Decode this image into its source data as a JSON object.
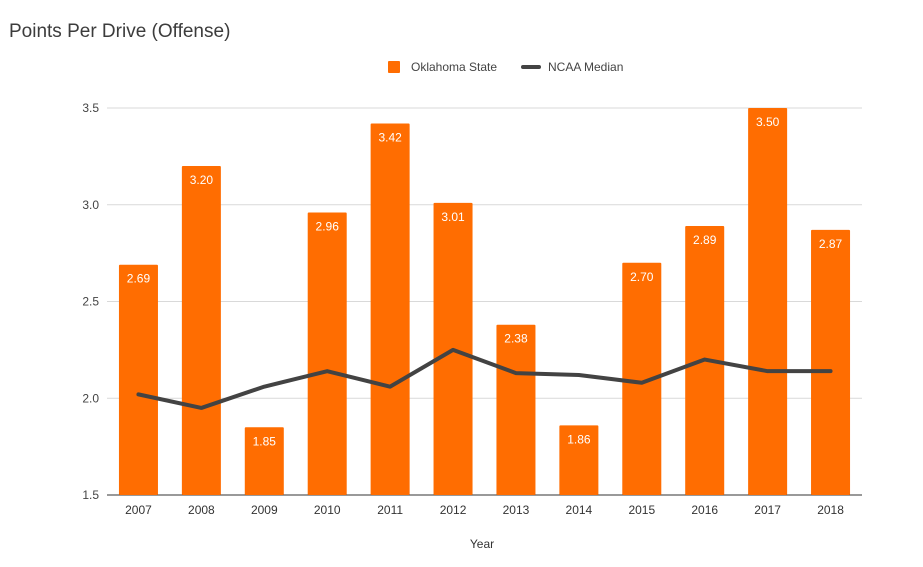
{
  "chart_data": {
    "type": "bar",
    "title": "Points Per Drive (Offense)",
    "xlabel": "Year",
    "ylabel": "",
    "ylim": [
      1.5,
      3.5
    ],
    "yticks": [
      "1.5",
      "2.0",
      "2.5",
      "3.0",
      "3.5"
    ],
    "grid": true,
    "legend_position": "top",
    "categories": [
      "2007",
      "2008",
      "2009",
      "2010",
      "2011",
      "2012",
      "2013",
      "2014",
      "2015",
      "2016",
      "2017",
      "2018"
    ],
    "series": [
      {
        "name": "Oklahoma State",
        "type": "bar",
        "color": "#ff6d01",
        "values": [
          2.69,
          3.2,
          1.85,
          2.96,
          3.42,
          3.01,
          2.38,
          1.86,
          2.7,
          2.89,
          3.5,
          2.87
        ],
        "labels": [
          "2.69",
          "3.20",
          "1.85",
          "2.96",
          "3.42",
          "3.01",
          "2.38",
          "1.86",
          "2.70",
          "2.89",
          "3.50",
          "2.87"
        ]
      },
      {
        "name": "NCAA Median",
        "type": "line",
        "color": "#434343",
        "values": [
          2.02,
          1.95,
          2.06,
          2.14,
          2.06,
          2.25,
          2.13,
          2.12,
          2.08,
          2.2,
          2.14,
          2.14
        ]
      }
    ]
  }
}
